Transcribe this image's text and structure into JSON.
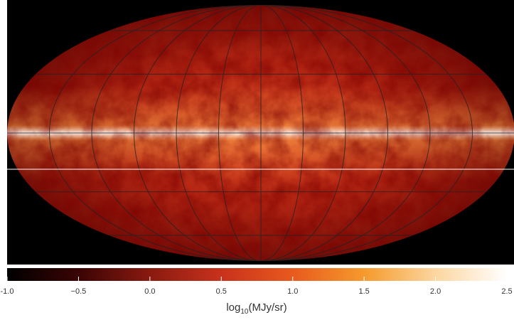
{
  "chart_data": {
    "type": "colormap",
    "colorbar": {
      "label_main": "log",
      "label_sub": "10",
      "label_unit": "(MJy/sr)",
      "lim": [
        -1.0,
        2.5
      ],
      "ticks": [
        {
          "value": -1.0,
          "label": "-1.0"
        },
        {
          "value": -0.5,
          "label": "−0.5"
        },
        {
          "value": 0.0,
          "label": "0.0"
        },
        0.5,
        {
          "value": 1.0,
          "label": "1.0"
        },
        1.5,
        {
          "value": 2.0,
          "label": "2.0"
        },
        2.5
      ],
      "colors": [
        "#000000",
        "#3a0404",
        "#8a1a10",
        "#c8321c",
        "#e85a1e",
        "#f59a2c",
        "#fcd6a0",
        "#ffffff"
      ]
    }
  }
}
